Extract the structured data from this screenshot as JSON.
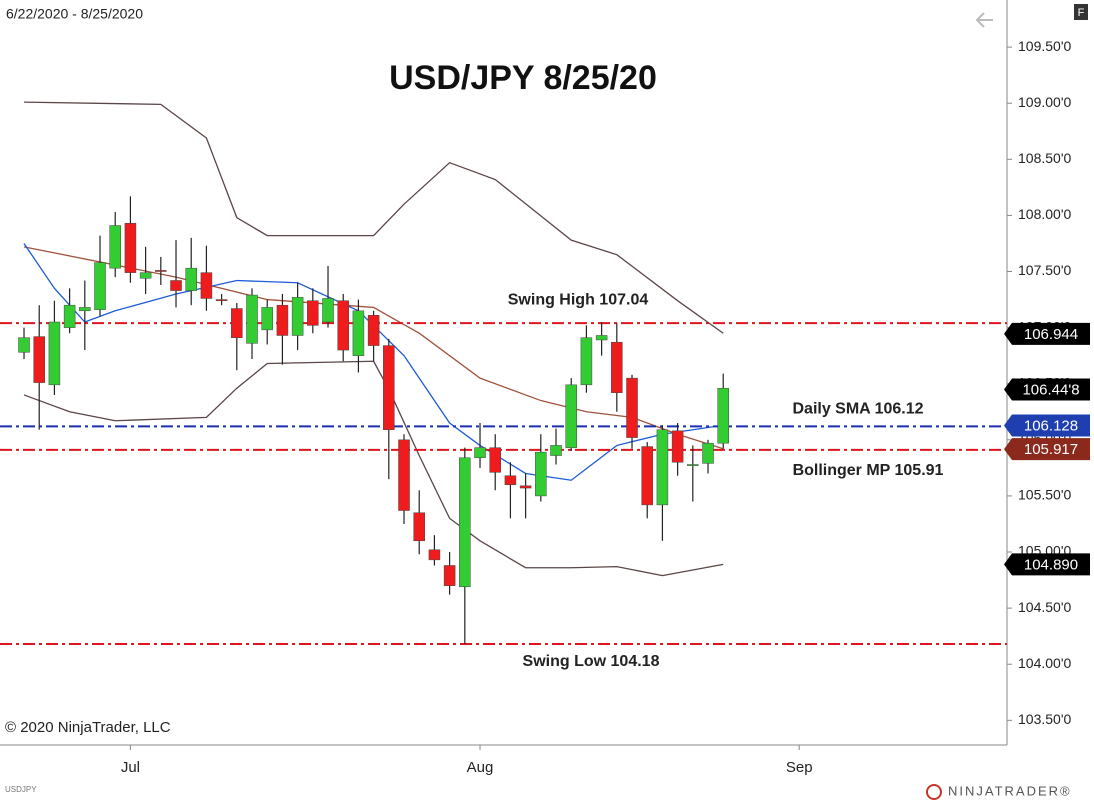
{
  "chart_data": {
    "type": "candlestick",
    "title": "USD/JPY 8/25/20",
    "date_range": "6/22/2020 - 8/25/2020",
    "corner_button": "F",
    "copyright": "© 2020 NinjaTrader, LLC",
    "symbol": "USDJPY",
    "brand": "NINJATRADER®",
    "up_color": "#33cc33",
    "down_color": "#ee1c1c",
    "x": [
      0,
      1,
      2,
      3,
      4,
      5,
      6,
      7,
      8,
      9,
      10,
      11,
      12,
      13,
      14,
      15,
      16,
      17,
      18,
      19,
      20,
      21,
      22,
      23,
      24,
      25,
      26,
      27,
      28,
      29,
      30,
      31,
      32,
      33,
      34,
      35,
      36,
      37,
      38,
      39,
      40,
      41,
      42,
      43,
      44,
      45,
      46
    ],
    "open": [
      106.78,
      106.92,
      106.49,
      107.0,
      107.15,
      107.16,
      107.53,
      107.93,
      107.44,
      107.51,
      107.42,
      107.33,
      107.49,
      107.25,
      107.17,
      106.86,
      106.98,
      107.2,
      106.93,
      107.24,
      107.05,
      107.24,
      106.75,
      107.11,
      106.84,
      106.0,
      105.35,
      105.02,
      104.88,
      104.69,
      105.84,
      105.93,
      105.68,
      105.59,
      105.5,
      105.86,
      105.93,
      106.49,
      106.89,
      106.87,
      106.55,
      105.94,
      105.42,
      106.08,
      105.77,
      105.79,
      105.97
    ],
    "high": [
      107.0,
      107.2,
      107.24,
      107.35,
      107.42,
      107.82,
      108.03,
      108.17,
      107.72,
      107.63,
      107.78,
      107.8,
      107.73,
      107.3,
      107.22,
      107.35,
      107.25,
      107.3,
      107.4,
      107.35,
      107.55,
      107.3,
      107.25,
      107.15,
      106.9,
      106.05,
      105.55,
      105.15,
      105.0,
      105.93,
      106.15,
      106.05,
      105.8,
      105.7,
      106.05,
      106.1,
      106.55,
      107.02,
      107.05,
      107.04,
      106.58,
      105.98,
      106.13,
      106.15,
      105.95,
      106.0,
      106.59
    ],
    "low": [
      106.72,
      106.09,
      106.4,
      106.95,
      106.8,
      107.1,
      107.45,
      107.4,
      107.3,
      107.38,
      107.18,
      107.2,
      107.15,
      107.2,
      106.62,
      106.72,
      106.85,
      106.67,
      106.8,
      106.95,
      107.0,
      106.7,
      106.6,
      106.7,
      105.65,
      105.25,
      104.98,
      104.88,
      104.62,
      104.18,
      105.75,
      105.55,
      105.3,
      105.3,
      105.45,
      105.78,
      105.9,
      106.42,
      106.75,
      106.25,
      105.92,
      105.3,
      105.1,
      105.68,
      105.45,
      105.7,
      105.92
    ],
    "close": [
      106.91,
      106.51,
      107.05,
      107.2,
      107.18,
      107.58,
      107.91,
      107.49,
      107.49,
      107.5,
      107.33,
      107.53,
      107.26,
      107.24,
      106.91,
      107.29,
      107.18,
      106.93,
      107.27,
      107.02,
      107.26,
      106.8,
      107.15,
      106.84,
      106.09,
      105.37,
      105.1,
      104.93,
      104.7,
      105.84,
      105.93,
      105.71,
      105.6,
      105.57,
      105.89,
      105.95,
      106.49,
      106.91,
      106.93,
      106.42,
      106.02,
      105.42,
      106.09,
      105.8,
      105.78,
      105.97,
      106.46
    ],
    "overlays": [
      {
        "color": "#5a4646",
        "x": [
          0,
          9,
          12,
          14,
          16,
          23,
          25,
          28,
          31,
          36,
          39,
          43,
          46
        ],
        "values": [
          109.01,
          108.99,
          108.69,
          107.98,
          107.82,
          107.82,
          108.1,
          108.47,
          108.32,
          107.78,
          107.65,
          107.24,
          106.95
        ]
      },
      {
        "color": "#5a4646",
        "x": [
          0,
          3,
          6,
          12,
          14,
          16,
          23,
          24,
          26,
          28,
          30,
          33,
          36,
          39,
          42,
          46
        ],
        "values": [
          106.4,
          106.25,
          106.17,
          106.2,
          106.46,
          106.68,
          106.7,
          106.45,
          105.86,
          105.3,
          105.1,
          104.86,
          104.86,
          104.87,
          104.79,
          104.89
        ]
      },
      {
        "color": "#a0523c",
        "x": [
          0,
          10,
          16,
          23,
          26,
          30,
          34,
          37,
          40,
          43,
          46
        ],
        "values": [
          107.72,
          107.45,
          107.25,
          107.18,
          106.95,
          106.55,
          106.35,
          106.25,
          106.2,
          106.05,
          105.92
        ]
      },
      {
        "color": "#1e5bd6",
        "x": [
          0,
          2,
          4,
          6,
          10,
          14,
          18,
          22,
          25,
          28,
          30,
          33,
          36,
          39,
          42,
          46
        ],
        "values": [
          107.75,
          107.35,
          107.05,
          107.15,
          107.3,
          107.42,
          107.4,
          107.15,
          106.75,
          106.15,
          105.95,
          105.7,
          105.64,
          105.95,
          106.05,
          106.13
        ]
      }
    ],
    "levels": [
      {
        "label": "Swing High 107.04",
        "value": 107.04,
        "color": "#e0141e"
      },
      {
        "label": "Daily SMA 106.12",
        "value": 106.12,
        "color": "#1a2fb0"
      },
      {
        "label": "Bollinger MP 105.91",
        "value": 105.91,
        "color": "#e0141e"
      },
      {
        "label": "Swing Low 104.18",
        "value": 104.18,
        "color": "#e0141e"
      }
    ],
    "price_markers": [
      {
        "value": 106.944,
        "label": "106.944",
        "color": "#000000"
      },
      {
        "value": 106.448,
        "label": "106.44'8",
        "color": "#000000"
      },
      {
        "value": 106.128,
        "label": "106.128",
        "color": "#1f3fb0"
      },
      {
        "value": 105.917,
        "label": "105.917",
        "color": "#8b2a1c"
      },
      {
        "value": 104.89,
        "label": "104.890",
        "color": "#000000"
      }
    ],
    "xlim": [
      -1.58,
      64.67
    ],
    "xticks": [
      {
        "value": 7,
        "label": "Jul"
      },
      {
        "value": 30,
        "label": "Aug"
      },
      {
        "value": 51,
        "label": "Sep"
      }
    ],
    "ylim": [
      103.28,
      109.92
    ],
    "yticks": [
      {
        "value": 103.5,
        "label": "103.50'0"
      },
      {
        "value": 104,
        "label": "104.00'0"
      },
      {
        "value": 104.5,
        "label": "104.50'0"
      },
      {
        "value": 105,
        "label": "105.00'0"
      },
      {
        "value": 105.5,
        "label": "105.50'0"
      },
      {
        "value": 106,
        "label": "106.00'0"
      },
      {
        "value": 106.5,
        "label": "106.50'0"
      },
      {
        "value": 107,
        "label": "107.00'0"
      },
      {
        "value": 107.5,
        "label": "107.50'0"
      },
      {
        "value": 108,
        "label": "108.00'0"
      },
      {
        "value": 108.5,
        "label": "108.50'0"
      },
      {
        "value": 109,
        "label": "109.00'0"
      },
      {
        "value": 109.5,
        "label": "109.50'0"
      }
    ],
    "grid": false
  }
}
